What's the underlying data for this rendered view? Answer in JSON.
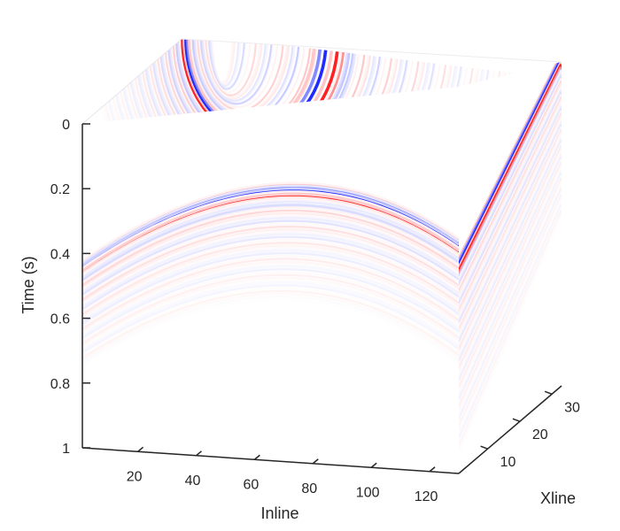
{
  "chart_data": {
    "type": "heatmap",
    "subtype": "3d-seismic-cube",
    "title": "",
    "colormap": [
      "#1f2bff",
      "#ffffff",
      "#ff2020"
    ],
    "xlabel": "Inline",
    "ylabel": "Xline",
    "zlabel": "Time (s)",
    "xlim": [
      1,
      130
    ],
    "ylim": [
      1,
      33
    ],
    "zlim": [
      0,
      1
    ],
    "z_reversed": true,
    "x_ticks": [
      {
        "value": 20,
        "label": "20"
      },
      {
        "value": 40,
        "label": "40"
      },
      {
        "value": 60,
        "label": "60"
      },
      {
        "value": 80,
        "label": "80"
      },
      {
        "value": 100,
        "label": "100"
      },
      {
        "value": 120,
        "label": "120"
      }
    ],
    "y_ticks": [
      {
        "value": 10,
        "label": "10"
      },
      {
        "value": 20,
        "label": "20"
      },
      {
        "value": 30,
        "label": "30"
      }
    ],
    "z_ticks": [
      {
        "value": 0,
        "label": "0"
      },
      {
        "value": 0.2,
        "label": "0.2"
      },
      {
        "value": 0.4,
        "label": "0.4"
      },
      {
        "value": 0.6,
        "label": "0.6"
      },
      {
        "value": 0.8,
        "label": "0.8"
      },
      {
        "value": 1,
        "label": "1"
      }
    ],
    "events": [
      {
        "face": "front",
        "shape": "hyperbola",
        "apex_inline": 68,
        "apex_time": 0.25,
        "time_at_edges": 0.45,
        "amplitude": 1.0
      },
      {
        "face": "front",
        "shape": "hyperbola",
        "apex_inline": 68,
        "apex_time": 0.2,
        "time_at_edges": 0.4,
        "amplitude": 0.5
      },
      {
        "face": "side",
        "shape": "linear",
        "time_at_xline_1": 0.47,
        "time_at_xline_33": 0.0,
        "amplitude": 1.0
      },
      {
        "face": "top",
        "shape": "curved",
        "amplitude": 1.0
      }
    ],
    "grid": false,
    "legend": "none"
  }
}
